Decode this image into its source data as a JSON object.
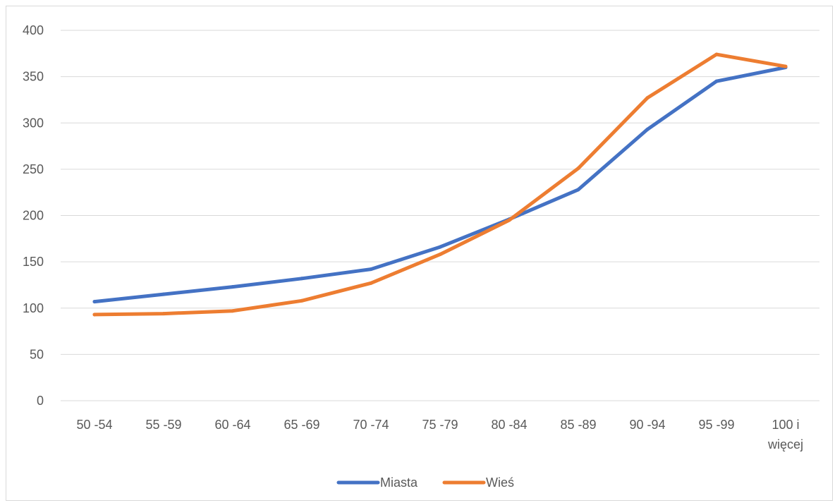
{
  "chart_data": {
    "type": "line",
    "title": "",
    "xlabel": "",
    "ylabel": "",
    "categories": [
      [
        "50 -54"
      ],
      [
        "55 -59"
      ],
      [
        "60 -64"
      ],
      [
        "65 -69"
      ],
      [
        "70 -74"
      ],
      [
        "75 -79"
      ],
      [
        "80 -84"
      ],
      [
        "85 -89"
      ],
      [
        "90 -94"
      ],
      [
        "95 -99"
      ],
      [
        "100 i",
        "więcej"
      ]
    ],
    "ylim": [
      0,
      400
    ],
    "yticks": [
      0,
      50,
      100,
      150,
      200,
      250,
      300,
      350,
      400
    ],
    "grid": "horizontal",
    "legend_position": "bottom",
    "series": [
      {
        "name": "Miasta",
        "color": "#4472C4",
        "values": [
          107,
          115,
          123,
          132,
          142,
          166,
          196,
          228,
          293,
          345,
          360
        ]
      },
      {
        "name": "Wieś",
        "color": "#ED7D31",
        "values": [
          93,
          94,
          97,
          108,
          127,
          158,
          195,
          251,
          327,
          374,
          361
        ]
      }
    ]
  }
}
